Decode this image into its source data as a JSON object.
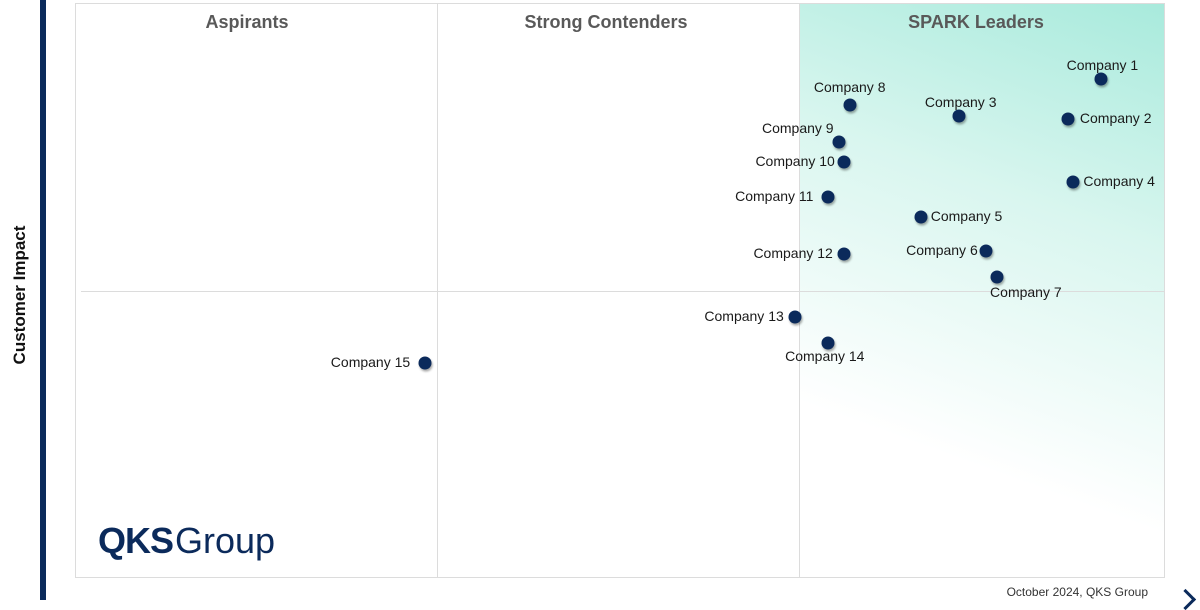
{
  "chart_data": {
    "type": "scatter",
    "ylabel": "Customer Impact",
    "quadrants": [
      "Aspirants",
      "Strong Contenders",
      "SPARK Leaders"
    ],
    "points": [
      {
        "name": "Company 1",
        "x": 9.4,
        "y": 8.7
      },
      {
        "name": "Company 2",
        "x": 9.1,
        "y": 8.0
      },
      {
        "name": "Company 3",
        "x": 8.1,
        "y": 8.05
      },
      {
        "name": "Company 4",
        "x": 9.15,
        "y": 6.9
      },
      {
        "name": "Company 5",
        "x": 7.75,
        "y": 6.3
      },
      {
        "name": "Company 6",
        "x": 8.35,
        "y": 5.7
      },
      {
        "name": "Company 7",
        "x": 8.45,
        "y": 5.25
      },
      {
        "name": "Company 8",
        "x": 7.1,
        "y": 8.25
      },
      {
        "name": "Company 9",
        "x": 7.0,
        "y": 7.6
      },
      {
        "name": "Company 10",
        "x": 7.05,
        "y": 7.25
      },
      {
        "name": "Company 11",
        "x": 6.9,
        "y": 6.65
      },
      {
        "name": "Company 12",
        "x": 7.05,
        "y": 5.65
      },
      {
        "name": "Company 13",
        "x": 6.6,
        "y": 4.55
      },
      {
        "name": "Company 14",
        "x": 6.9,
        "y": 4.1
      },
      {
        "name": "Company 15",
        "x": 3.2,
        "y": 3.75
      }
    ]
  },
  "logo": {
    "brand": "QKS",
    "suffix": "Group"
  },
  "footer": "October 2024, QKS Group",
  "colors": {
    "marker": "#0b2a5b",
    "leaders_gradient": "#a8eadc",
    "gridline": "#dcdcdc"
  }
}
